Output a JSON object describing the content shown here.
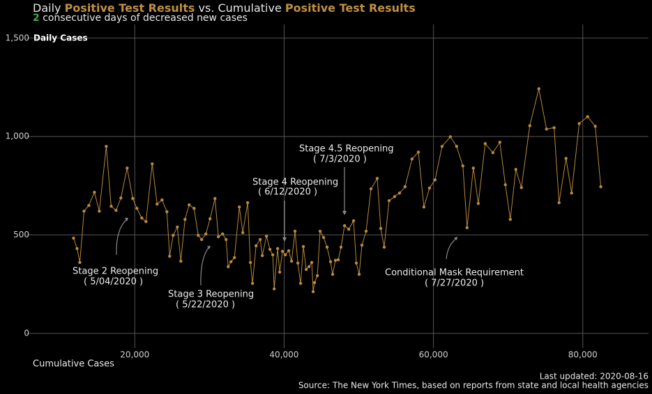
{
  "chart_data": {
    "type": "line",
    "title_parts": [
      "Daily ",
      "Positive Test Results",
      " vs. Cumulative ",
      "Positive Test Results"
    ],
    "subtitle_parts": [
      "2",
      " consecutive days of decreased new cases"
    ],
    "y_label": "Daily Cases",
    "x_label": "Cumulative Cases",
    "updated": "Last updated: 2020-08-16",
    "source": "Source: The New York Times, based on reports from state and local health agencies",
    "highlight_color": "#c08f47",
    "count_color": "#3cb043",
    "color": "#b8893e",
    "grid": true,
    "xlim": [
      5500,
      88800
    ],
    "ylim": [
      -110,
      1570
    ],
    "xticks": [
      {
        "value": 20000,
        "label": "20,000"
      },
      {
        "value": 40000,
        "label": "40,000"
      },
      {
        "value": 60000,
        "label": "60,000"
      },
      {
        "value": 80000,
        "label": "80,000"
      }
    ],
    "yticks": [
      0,
      500,
      {
        "value": 1000,
        "label": "1,000"
      },
      {
        "value": 1500,
        "label": "1,500"
      }
    ],
    "annotations": [
      [
        "Stage 2 Reopening",
        "( 5/04/2020 )"
      ],
      [
        "Stage 3 Reopening",
        "( 5/22/2020 )"
      ],
      [
        "Stage 4 Reopening",
        "( 6/12/2020 )"
      ],
      [
        "Stage 4.5 Reopening",
        "( 7/3/2020 )"
      ],
      [
        "Conditional Mask Requirement",
        "( 7/27/2020 )"
      ]
    ],
    "x": [
      11800,
      12270,
      12640,
      13200,
      13850,
      14600,
      15250,
      16180,
      16840,
      17490,
      18140,
      18980,
      19730,
      20290,
      20940,
      21500,
      22340,
      22990,
      23650,
      24300,
      24670,
      25140,
      25700,
      26170,
      26730,
      27280,
      27940,
      28500,
      28960,
      29520,
      30080,
      30740,
      31200,
      31760,
      32230,
      32510,
      32880,
      33350,
      34000,
      34470,
      35120,
      35490,
      35770,
      36240,
      36800,
      37080,
      37640,
      38100,
      38480,
      38670,
      39130,
      39410,
      39780,
      40160,
      40620,
      41000,
      41460,
      41840,
      42210,
      42580,
      42960,
      43330,
      43700,
      43890,
      44080,
      44450,
      44820,
      45290,
      45750,
      46220,
      46500,
      46870,
      47250,
      47620,
      48090,
      48650,
      49300,
      49670,
      50050,
      50420,
      50980,
      51630,
      52470,
      52940,
      53400,
      54060,
      54800,
      55460,
      56200,
      57130,
      57980,
      58720,
      59470,
      60210,
      61150,
      62260,
      63100,
      63940,
      64500,
      65340,
      66000,
      66930,
      67960,
      68890,
      69630,
      70290,
      71030,
      71780,
      72900,
      74110,
      75140,
      76160,
      76820,
      77750,
      78500,
      79520,
      80640,
      81670,
      82410
    ],
    "values": [
      484,
      431,
      360,
      621,
      650,
      717,
      621,
      950,
      646,
      625,
      688,
      840,
      685,
      635,
      586,
      568,
      861,
      657,
      678,
      618,
      392,
      498,
      540,
      367,
      579,
      653,
      635,
      498,
      477,
      505,
      582,
      685,
      491,
      505,
      477,
      339,
      364,
      385,
      642,
      512,
      664,
      360,
      254,
      445,
      477,
      395,
      494,
      427,
      399,
      226,
      431,
      311,
      417,
      399,
      420,
      367,
      519,
      357,
      254,
      441,
      325,
      339,
      360,
      212,
      258,
      293,
      519,
      487,
      438,
      364,
      300,
      371,
      374,
      438,
      547,
      529,
      572,
      357,
      300,
      448,
      519,
      734,
      787,
      533,
      438,
      674,
      695,
      713,
      745,
      886,
      921,
      642,
      738,
      780,
      950,
      999,
      950,
      851,
      537,
      840,
      660,
      964,
      918,
      971,
      755,
      579,
      833,
      741,
      1055,
      1243,
      1038,
      1045,
      664,
      889,
      713,
      1066,
      1101,
      1052,
      745
    ]
  }
}
